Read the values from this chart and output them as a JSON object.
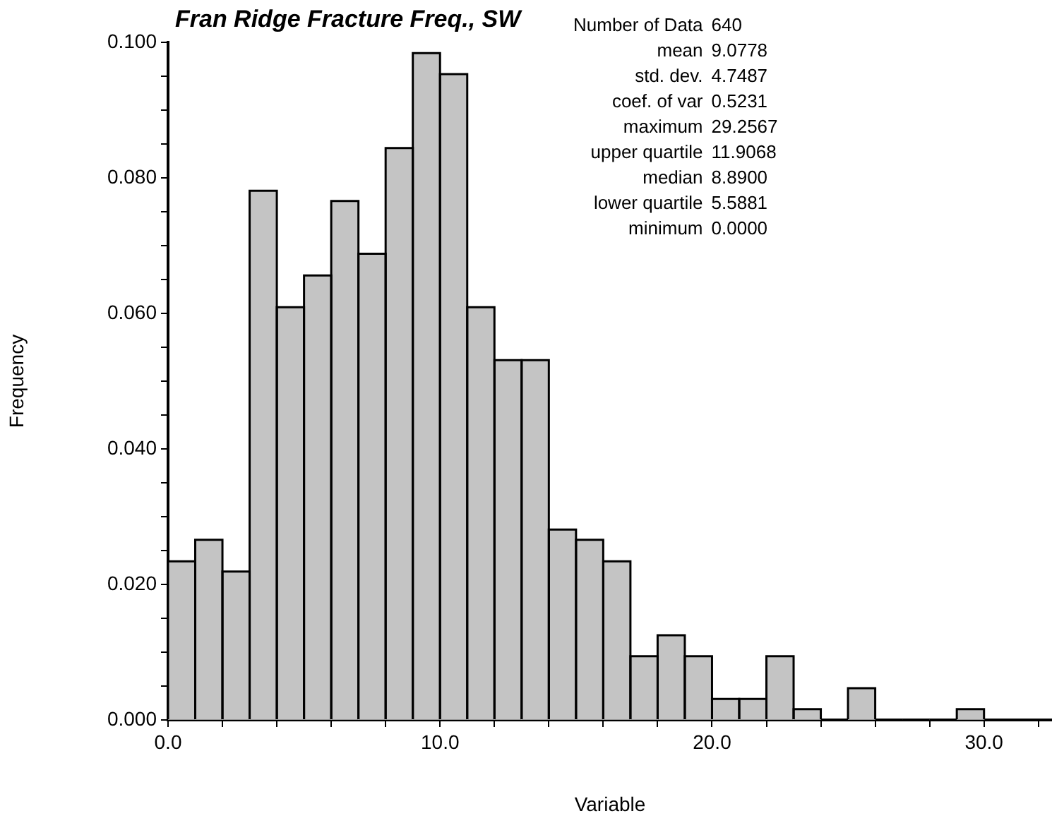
{
  "chart_data": {
    "type": "histogram",
    "title": "Fran Ridge Fracture Freq., SW",
    "xlabel": "Variable",
    "ylabel": "Frequency",
    "bins": [
      0,
      1,
      2,
      3,
      4,
      5,
      6,
      7,
      8,
      9,
      10,
      11,
      12,
      13,
      14,
      15,
      16,
      17,
      18,
      19,
      20,
      21,
      22,
      23,
      24,
      25,
      26,
      27,
      28,
      29,
      30
    ],
    "values": [
      0.0234,
      0.0266,
      0.0219,
      0.0781,
      0.0609,
      0.0656,
      0.0766,
      0.0688,
      0.0844,
      0.0984,
      0.0953,
      0.0609,
      0.0531,
      0.0531,
      0.0281,
      0.0266,
      0.0234,
      0.0094,
      0.0125,
      0.0094,
      0.0031,
      0.0031,
      0.0094,
      0.0016,
      0,
      0.0047,
      0,
      0,
      0,
      0.0016
    ],
    "color": "#c4c4c4",
    "xlim": [
      0,
      32.5
    ],
    "xticks": [
      {
        "value": 0,
        "label": "0.0"
      },
      {
        "value": 2,
        "label": null
      },
      {
        "value": 4,
        "label": null
      },
      {
        "value": 6,
        "label": null
      },
      {
        "value": 8,
        "label": null
      },
      {
        "value": 10,
        "label": "10.0"
      },
      {
        "value": 12,
        "label": null
      },
      {
        "value": 14,
        "label": null
      },
      {
        "value": 16,
        "label": null
      },
      {
        "value": 18,
        "label": null
      },
      {
        "value": 20,
        "label": "20.0"
      },
      {
        "value": 22,
        "label": null
      },
      {
        "value": 24,
        "label": null
      },
      {
        "value": 26,
        "label": null
      },
      {
        "value": 28,
        "label": null
      },
      {
        "value": 30,
        "label": "30.0"
      },
      {
        "value": 32,
        "label": null
      }
    ],
    "ylim": [
      0,
      0.1
    ],
    "yticks": [
      {
        "value": 0,
        "label": "0.000"
      },
      {
        "value": 0.005,
        "label": null
      },
      {
        "value": 0.01,
        "label": null
      },
      {
        "value": 0.015,
        "label": null
      },
      {
        "value": 0.02,
        "label": "0.020"
      },
      {
        "value": 0.025,
        "label": null
      },
      {
        "value": 0.03,
        "label": null
      },
      {
        "value": 0.035,
        "label": null
      },
      {
        "value": 0.04,
        "label": "0.040"
      },
      {
        "value": 0.045,
        "label": null
      },
      {
        "value": 0.05,
        "label": null
      },
      {
        "value": 0.055,
        "label": null
      },
      {
        "value": 0.06,
        "label": "0.060"
      },
      {
        "value": 0.065,
        "label": null
      },
      {
        "value": 0.07,
        "label": null
      },
      {
        "value": 0.075,
        "label": null
      },
      {
        "value": 0.08,
        "label": "0.080"
      },
      {
        "value": 0.085,
        "label": null
      },
      {
        "value": 0.09,
        "label": null
      },
      {
        "value": 0.095,
        "label": null
      },
      {
        "value": 0.1,
        "label": "0.100"
      }
    ],
    "grid": false,
    "legend": false,
    "annotations": [
      "Number of Data 640",
      "mean 9.0778",
      "std. dev. 4.7487",
      "coef. of var 0.5231",
      "maximum 29.2567",
      "upper quartile 11.9068",
      "median 8.8900",
      "lower quartile 5.5881",
      "minimum 0.0000"
    ]
  }
}
